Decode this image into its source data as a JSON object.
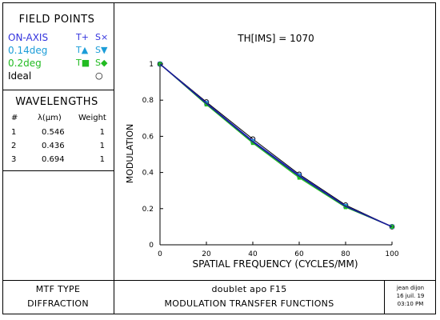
{
  "left_panel": {
    "field_points": {
      "title": "FIELD POINTS",
      "rows": [
        {
          "name": "ON-AXIS",
          "t": "T+",
          "s": "S×",
          "color": "#3333dd"
        },
        {
          "name": "0.14deg",
          "t": "T▲",
          "s": "S▼",
          "color": "#1c9dd8"
        },
        {
          "name": "0.2deg",
          "t": "T■",
          "s": "S◆",
          "color": "#22bb22"
        },
        {
          "name": "Ideal",
          "t": "",
          "s": "○",
          "color": "#000000"
        }
      ]
    },
    "wavelengths": {
      "title": "WAVELENGTHS",
      "headers": [
        "#",
        "λ(µm)",
        "Weight"
      ],
      "rows": [
        [
          "1",
          "0.546",
          "1"
        ],
        [
          "2",
          "0.436",
          "1"
        ],
        [
          "3",
          "0.694",
          "1"
        ]
      ]
    }
  },
  "footer": {
    "mtf_type_label": "MTF TYPE",
    "mtf_type_value": "DIFFRACTION",
    "lens_name": "doublet apo F15",
    "plot_title": "MODULATION TRANSFER FUNCTIONS",
    "author": "jean dijon",
    "date": "16 juil. 19",
    "time": "03:10 PM"
  },
  "chart_data": {
    "type": "line",
    "title": "TH[IMS] = 1070",
    "xlabel": "SPATIAL FREQUENCY (CYCLES/MM)",
    "ylabel": "MODULATION",
    "xlim": [
      0,
      100
    ],
    "ylim": [
      0,
      1
    ],
    "x_ticks": [
      "0",
      "20",
      "40",
      "60",
      "80",
      "100"
    ],
    "y_ticks": [
      "0",
      "0.2",
      "0.4",
      "0.6",
      "0.8",
      "1"
    ],
    "x": [
      0,
      20,
      40,
      60,
      80,
      100
    ],
    "series": [
      {
        "name": "Ideal",
        "color": "#000000",
        "marker": "circle",
        "values": [
          1.0,
          0.79,
          0.585,
          0.39,
          0.22,
          0.1
        ]
      },
      {
        "name": "ON-AXIS T",
        "color": "#3333dd",
        "marker": "plus",
        "values": [
          1.0,
          0.785,
          0.575,
          0.385,
          0.215,
          0.1
        ]
      },
      {
        "name": "ON-AXIS S",
        "color": "#3333dd",
        "marker": "x",
        "values": [
          1.0,
          0.785,
          0.575,
          0.385,
          0.215,
          0.1
        ]
      },
      {
        "name": "0.14deg T",
        "color": "#1c9dd8",
        "marker": "triangle-up",
        "values": [
          1.0,
          0.78,
          0.57,
          0.38,
          0.213,
          0.1
        ]
      },
      {
        "name": "0.14deg S",
        "color": "#1c9dd8",
        "marker": "triangle-down",
        "values": [
          1.0,
          0.782,
          0.572,
          0.382,
          0.214,
          0.1
        ]
      },
      {
        "name": "0.2deg T",
        "color": "#22bb22",
        "marker": "square",
        "values": [
          1.0,
          0.775,
          0.562,
          0.37,
          0.207,
          0.1
        ]
      },
      {
        "name": "0.2deg S",
        "color": "#22bb22",
        "marker": "diamond",
        "values": [
          1.0,
          0.778,
          0.566,
          0.375,
          0.21,
          0.1
        ]
      },
      {
        "name": "Average",
        "color": "#1a1a99",
        "marker": "none",
        "values": [
          1.0,
          0.782,
          0.57,
          0.38,
          0.213,
          0.1
        ]
      }
    ]
  }
}
